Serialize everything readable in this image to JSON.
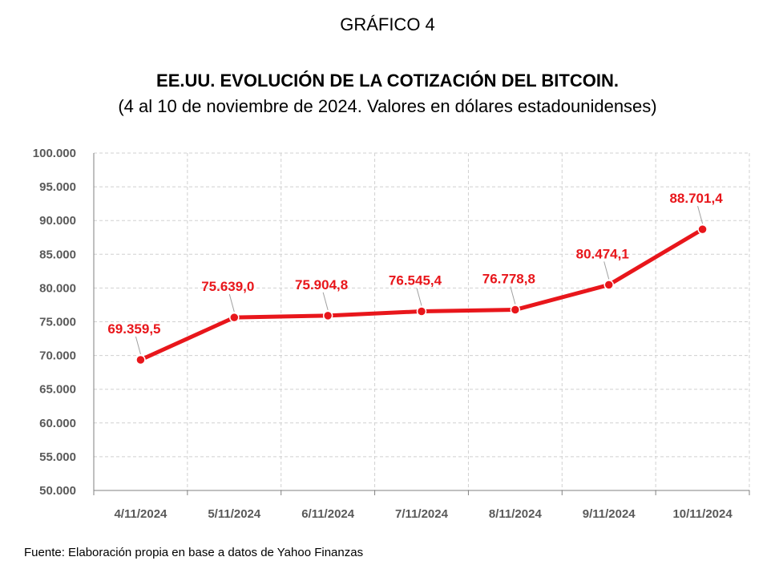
{
  "header": {
    "supertitle": "GRÁFICO 4",
    "title": "EE.UU. EVOLUCIÓN DE LA COTIZACIÓN DEL BITCOIN.",
    "subtitle": "(4 al 10 de noviembre de 2024. Valores en dólares estadounidenses)"
  },
  "footer": {
    "source": "Fuente: Elaboración propia en base a datos de Yahoo Finanzas"
  },
  "colors": {
    "line": "#e8161b",
    "label": "#e8161b",
    "grid": "#d0d0d0",
    "axis_text": "#595959"
  },
  "chart_data": {
    "type": "line",
    "title": "EE.UU. EVOLUCIÓN DE LA COTIZACIÓN DEL BITCOIN.",
    "categories": [
      "4/11/2024",
      "5/11/2024",
      "6/11/2024",
      "7/11/2024",
      "8/11/2024",
      "9/11/2024",
      "10/11/2024"
    ],
    "values": [
      69359.5,
      75639.0,
      75904.8,
      76545.4,
      76778.8,
      80474.1,
      88701.4
    ],
    "data_labels": [
      "69.359,5",
      "75.639,0",
      "75.904,8",
      "76.545,4",
      "76.778,8",
      "80.474,1",
      "88.701,4"
    ],
    "ylim": [
      50000,
      100000
    ],
    "y_ticks": [
      50000,
      55000,
      60000,
      65000,
      70000,
      75000,
      80000,
      85000,
      90000,
      95000,
      100000
    ],
    "y_tick_labels": [
      "50.000",
      "55.000",
      "60.000",
      "65.000",
      "70.000",
      "75.000",
      "80.000",
      "85.000",
      "90.000",
      "95.000",
      "100.000"
    ],
    "grid": true,
    "legend": "none"
  }
}
